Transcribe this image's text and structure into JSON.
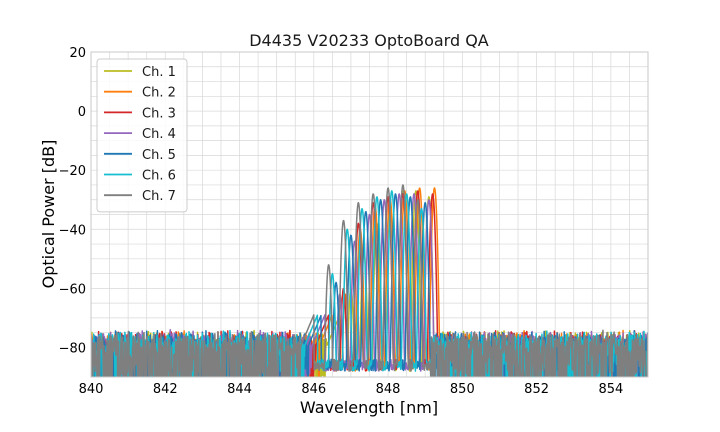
{
  "chart_data": {
    "type": "line",
    "title": "D4435 V20233 OptoBoard QA",
    "xlabel": "Wavelength [nm]",
    "ylabel": "Optical Power [dB]",
    "xlim": [
      840,
      855
    ],
    "ylim": [
      -90,
      20
    ],
    "xticks": [
      840,
      842,
      844,
      846,
      848,
      850,
      852,
      854
    ],
    "yticks": [
      20,
      0,
      -20,
      -40,
      -60,
      -80
    ],
    "xtick_labels": [
      "840",
      "842",
      "844",
      "846",
      "848",
      "850",
      "852",
      "854"
    ],
    "ytick_labels": [
      "20",
      "0",
      "−20",
      "−40",
      "−60",
      "−80"
    ],
    "grid": true,
    "legend_position": "top-left",
    "noise_floor_db": -77,
    "series": [
      {
        "name": "Ch. 1",
        "color": "#bcbd22",
        "band_nm": [
          846.7,
          849.4
        ],
        "peaks_x": [
          847.0,
          847.35,
          847.7,
          848.05,
          848.4,
          848.75,
          849.1
        ],
        "peaks_y": [
          -60,
          -48,
          -38,
          -30,
          -27,
          -27,
          -29
        ]
      },
      {
        "name": "Ch. 2",
        "color": "#ff7f0e",
        "band_nm": [
          846.5,
          849.5
        ],
        "peaks_x": [
          846.85,
          847.25,
          847.65,
          848.05,
          848.45,
          848.85,
          849.25
        ],
        "peaks_y": [
          -62,
          -40,
          -32,
          -29,
          -27,
          -26,
          -26
        ]
      },
      {
        "name": "Ch. 3",
        "color": "#d62728",
        "band_nm": [
          846.4,
          849.4
        ],
        "peaks_x": [
          846.8,
          847.2,
          847.6,
          848.0,
          848.4,
          848.8,
          849.2
        ],
        "peaks_y": [
          -60,
          -38,
          -31,
          -29,
          -28,
          -27,
          -28
        ]
      },
      {
        "name": "Ch. 4",
        "color": "#9467bd",
        "band_nm": [
          846.3,
          849.3
        ],
        "peaks_x": [
          846.7,
          847.1,
          847.5,
          847.9,
          848.3,
          848.7,
          849.1
        ],
        "peaks_y": [
          -62,
          -44,
          -35,
          -30,
          -28,
          -28,
          -30
        ]
      },
      {
        "name": "Ch. 5",
        "color": "#1f77b4",
        "band_nm": [
          846.2,
          849.2
        ],
        "peaks_x": [
          846.6,
          847.0,
          847.4,
          847.8,
          848.2,
          848.6,
          849.0
        ],
        "peaks_y": [
          -58,
          -42,
          -34,
          -30,
          -28,
          -29,
          -31
        ]
      },
      {
        "name": "Ch. 6",
        "color": "#17becf",
        "band_nm": [
          846.1,
          849.1
        ],
        "peaks_x": [
          846.5,
          846.9,
          847.3,
          847.7,
          848.1,
          848.5,
          848.9
        ],
        "peaks_y": [
          -55,
          -40,
          -33,
          -29,
          -27,
          -28,
          -33
        ]
      },
      {
        "name": "Ch. 7",
        "color": "#7f7f7f",
        "band_nm": [
          846.0,
          849.1
        ],
        "peaks_x": [
          846.4,
          846.8,
          847.2,
          847.6,
          848.0,
          848.4,
          848.8
        ],
        "peaks_y": [
          -52,
          -37,
          -31,
          -28,
          -26,
          -25,
          -30
        ]
      }
    ]
  }
}
